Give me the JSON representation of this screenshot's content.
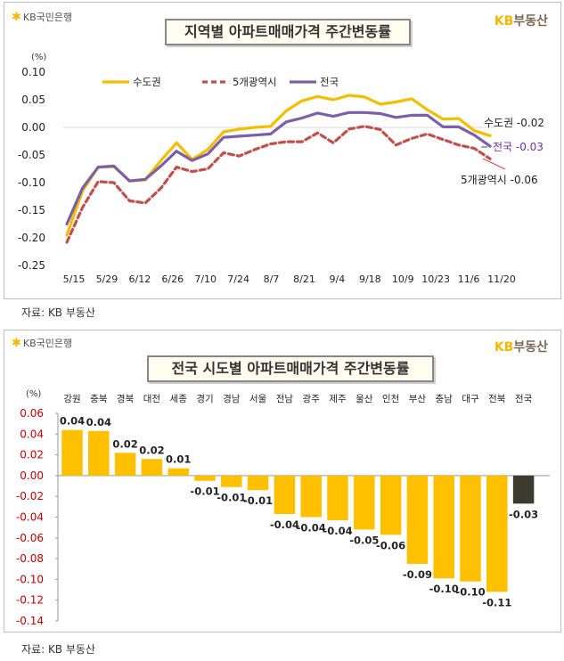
{
  "brand": {
    "left_logo": "KB국민은행",
    "right_logo_kb": "KB",
    "right_logo_text": "부동산"
  },
  "colors": {
    "capital": "#f2be00",
    "metro5": "#c0504d",
    "nation": "#7c5fa8",
    "bar": "#ffc000",
    "bar_nation": "#3d3b2e"
  },
  "chart_data": [
    {
      "type": "line",
      "title": "지역별 아파트매매가격 주간변동률",
      "unit": "(%)",
      "ylim": [
        -0.25,
        0.1
      ],
      "yticks": [
        "0.10",
        "0.05",
        "0.00",
        "-0.05",
        "-0.10",
        "-0.15",
        "-0.20",
        "-0.25"
      ],
      "xtick_labels": [
        "5/15",
        "5/29",
        "6/12",
        "6/26",
        "7/10",
        "7/24",
        "8/7",
        "8/21",
        "9/4",
        "9/18",
        "10/9",
        "10/23",
        "11/6",
        "11/20"
      ],
      "series": [
        {
          "name": "수도권",
          "end_label": "수도권 -0.02",
          "values": [
            -0.195,
            -0.115,
            -0.072,
            -0.071,
            -0.097,
            -0.095,
            -0.06,
            -0.028,
            -0.058,
            -0.04,
            -0.008,
            -0.003,
            0.0,
            0.002,
            0.03,
            0.048,
            0.056,
            0.05,
            0.058,
            0.055,
            0.042,
            0.046,
            0.052,
            0.032,
            0.015,
            0.016,
            -0.006,
            -0.015
          ]
        },
        {
          "name": "5개광역시",
          "end_label": "5개광역시 -0.06",
          "values": [
            -0.208,
            -0.145,
            -0.098,
            -0.1,
            -0.133,
            -0.137,
            -0.11,
            -0.072,
            -0.08,
            -0.075,
            -0.046,
            -0.052,
            -0.04,
            -0.03,
            -0.026,
            -0.026,
            -0.01,
            -0.028,
            -0.003,
            0.002,
            -0.004,
            -0.032,
            -0.02,
            -0.012,
            -0.022,
            -0.032,
            -0.038,
            -0.057
          ]
        },
        {
          "name": "전국",
          "end_label": "전국 -0.03",
          "values": [
            -0.175,
            -0.11,
            -0.072,
            -0.07,
            -0.097,
            -0.094,
            -0.07,
            -0.043,
            -0.06,
            -0.048,
            -0.018,
            -0.016,
            -0.014,
            -0.012,
            0.01,
            0.017,
            0.026,
            0.02,
            0.027,
            0.027,
            0.025,
            0.018,
            0.022,
            0.022,
            0.001,
            0.001,
            -0.014,
            -0.034
          ]
        }
      ]
    },
    {
      "type": "bar",
      "title": "전국 시도별 아파트매매가격 주간변동률",
      "unit": "(%)",
      "ylim": [
        -0.14,
        0.06
      ],
      "yticks": [
        "0.06",
        "0.04",
        "0.02",
        "0.00",
        "-0.02",
        "-0.04",
        "-0.06",
        "-0.08",
        "-0.10",
        "-0.12",
        "-0.14"
      ],
      "categories": [
        "강원",
        "충북",
        "경북",
        "대전",
        "세종",
        "경기",
        "경남",
        "서울",
        "전남",
        "광주",
        "제주",
        "울산",
        "인천",
        "부산",
        "충남",
        "대구",
        "전북",
        "전국"
      ],
      "values": [
        0.044,
        0.043,
        0.022,
        0.016,
        0.007,
        -0.005,
        -0.011,
        -0.014,
        -0.037,
        -0.04,
        -0.043,
        -0.052,
        -0.057,
        -0.085,
        -0.099,
        -0.102,
        -0.112,
        -0.027
      ],
      "labels": [
        "0.04",
        "0.04",
        "0.02",
        "0.02",
        "0.01",
        "-0.01",
        "-0.01",
        "-0.01",
        "-0.04",
        "-0.04",
        "-0.04",
        "-0.05",
        "-0.06",
        "-0.09",
        "-0.10",
        "-0.10",
        "-0.11",
        "-0.03"
      ]
    }
  ],
  "source1": "자료: KB 부동산",
  "source2": "자료: KB 부동산"
}
